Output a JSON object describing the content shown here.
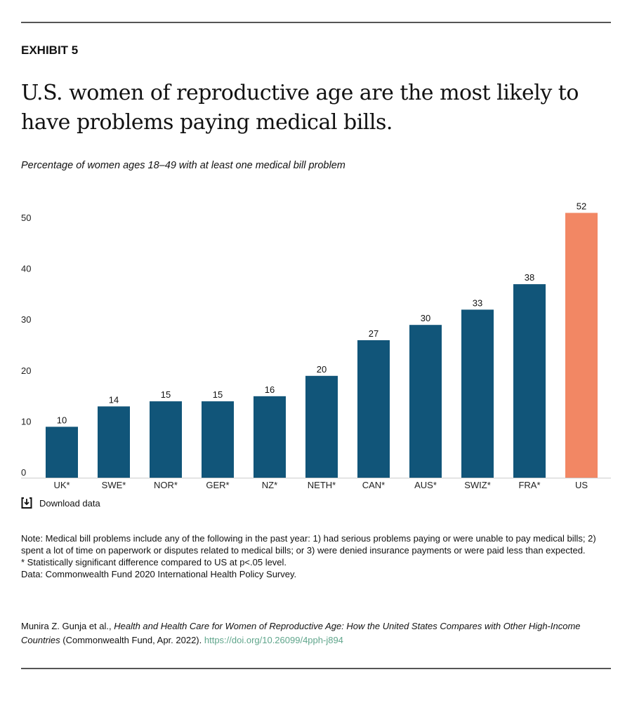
{
  "exhibit": "EXHIBIT 5",
  "title": "U.S. women of reproductive age are the most likely to have problems paying medical bills.",
  "subtitle": "Percentage of women ages 18–49 with at least one medical bill problem",
  "download_label": "Download data",
  "notes": [
    "Note: Medical bill problems include any of the following in the past year: 1) had serious problems paying or were unable to pay medical bills; 2) spent a lot of time on paperwork or disputes related to medical bills; or 3) were denied insurance payments or were paid less than expected.",
    "* Statistically significant difference compared to US at p<.05 level.",
    "Data: Commonwealth Fund 2020 International Health Policy Survey."
  ],
  "citation": {
    "authors": "Munira Z. Gunja et al., ",
    "title": "Health and Health Care for Women of Reproductive Age: How the United States Compares with Other High-Income Countries",
    "rest": " (Commonwealth Fund, Apr. 2022). ",
    "link": "https://doi.org/10.26099/4pph-j894"
  },
  "chart_data": {
    "type": "bar",
    "categories": [
      "UK*",
      "SWE*",
      "NOR*",
      "GER*",
      "NZ*",
      "NETH*",
      "CAN*",
      "AUS*",
      "SWIZ*",
      "FRA*",
      "US"
    ],
    "values": [
      10,
      14,
      15,
      15,
      16,
      20,
      27,
      30,
      33,
      38,
      52
    ],
    "data_labels": [
      "10",
      "14",
      "15",
      "15",
      "16",
      "20",
      "27",
      "30",
      "33",
      "38",
      "52"
    ],
    "yticks": [
      "0",
      "10",
      "20",
      "30",
      "40",
      "50"
    ],
    "ylim": [
      0,
      52
    ],
    "grid": false,
    "colors": {
      "default": "#115579",
      "highlight": "#f28764",
      "highlight_category": "US"
    }
  }
}
